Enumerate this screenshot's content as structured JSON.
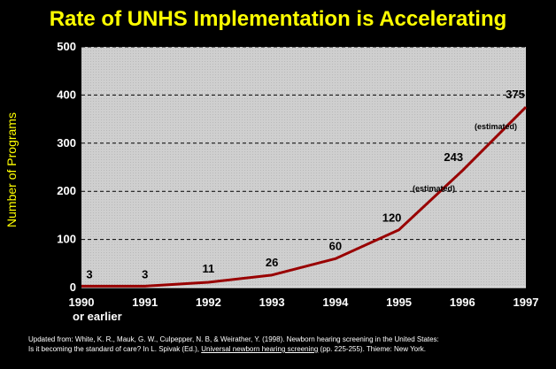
{
  "chart_data": {
    "type": "line",
    "title": "Rate of UNHS Implementation is Accelerating",
    "ylabel": "Number of Programs",
    "xlabel": "",
    "ylim": [
      0,
      500
    ],
    "yticks": [
      "0",
      "100",
      "200",
      "300",
      "400",
      "500"
    ],
    "categories": [
      "1990",
      "1991",
      "1992",
      "1993",
      "1994",
      "1995",
      "1996",
      "1997"
    ],
    "x_extra_label": "or earlier",
    "values": [
      3,
      3,
      11,
      26,
      60,
      120,
      243,
      375
    ],
    "data_labels": [
      "3",
      "3",
      "11",
      "26",
      "60",
      "120",
      "243",
      "375"
    ],
    "annotations": [
      "(estimated)",
      "(estimated)"
    ],
    "grid": true,
    "line_color": "#990000",
    "title_color": "#ffff00",
    "plot_background": "#d4d4d4"
  },
  "footnote": {
    "line1": "Updated from:  White, K. R., Mauk, G. W., Culpepper, N. B, & Weirather, Y. (1998).  Newborn hearing screening in the United States:",
    "line2_pre": "Is it becoming the standard of care?  In L. Spivak (Ed.),",
    "line2_title": "Universal newborn hearing screening",
    "line2_post": "(pp. 225-255).  Thieme: New York."
  }
}
